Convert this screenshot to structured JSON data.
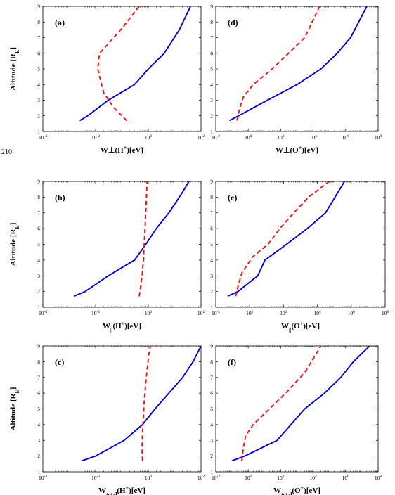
{
  "line_number": "210",
  "chart_data": [
    {
      "id": "a",
      "type": "line",
      "panel_label": "(a)",
      "xlabel": "W⊥(H+)[eV]",
      "ylabel": "Altitude [RE]",
      "xscale": "log",
      "xlim": [
        0.0001,
        100
      ],
      "ylim": [
        1,
        9
      ],
      "xticks": [
        {
          "base": "10",
          "exp": "-4",
          "v": 0.0001
        },
        {
          "base": "10",
          "exp": "-2",
          "v": 0.01
        },
        {
          "base": "10",
          "exp": "0",
          "v": 1
        },
        {
          "base": "10",
          "exp": "2",
          "v": 100
        }
      ],
      "yticks": [
        1,
        2,
        3,
        4,
        5,
        6,
        7,
        8,
        9
      ],
      "series": [
        {
          "color": "#0000d0",
          "style": "solid",
          "x": [
            0.0025,
            0.005,
            0.03,
            0.3,
            1,
            4,
            15,
            40
          ],
          "y": [
            1.7,
            2,
            3,
            4,
            5,
            6,
            7.5,
            9
          ]
        },
        {
          "color": "#ee1111",
          "style": "dashed",
          "x": [
            0.15,
            0.05,
            0.02,
            0.012,
            0.014,
            0.03,
            0.1,
            0.45
          ],
          "y": [
            1.7,
            2.5,
            3.5,
            5,
            6,
            6.6,
            7.6,
            9
          ]
        }
      ]
    },
    {
      "id": "d",
      "type": "line",
      "panel_label": "(d)",
      "xlabel": "W⊥(O+)[eV]",
      "ylabel": "",
      "xscale": "log",
      "xlim": [
        0.01,
        100000000
      ],
      "ylim": [
        1,
        9
      ],
      "xticks": [
        {
          "base": "10",
          "exp": "-2",
          "v": 0.01
        },
        {
          "base": "10",
          "exp": "0",
          "v": 1
        },
        {
          "base": "10",
          "exp": "2",
          "v": 100
        },
        {
          "base": "10",
          "exp": "4",
          "v": 10000
        },
        {
          "base": "10",
          "exp": "6",
          "v": 1000000
        },
        {
          "base": "10",
          "exp": "8",
          "v": 100000000
        }
      ],
      "yticks": [
        1,
        2,
        3,
        4,
        5,
        6,
        7,
        8,
        9
      ],
      "series": [
        {
          "color": "#0000d0",
          "style": "solid",
          "x": [
            0.07,
            0.25,
            15,
            1000,
            30000,
            300000,
            2000000,
            20000000
          ],
          "y": [
            1.7,
            2,
            3,
            4,
            5,
            6,
            7,
            9
          ]
        },
        {
          "color": "#ee1111",
          "style": "dashed",
          "x": [
            0.2,
            0.3,
            0.5,
            2,
            30,
            300,
            3000,
            25000
          ],
          "y": [
            1.7,
            2.5,
            3.2,
            4,
            5,
            6,
            7,
            9
          ]
        }
      ]
    },
    {
      "id": "b",
      "type": "line",
      "panel_label": "(b)",
      "xlabel": "W||(H+)[eV]",
      "ylabel": "Altitude [RE]",
      "xscale": "log",
      "xlim": [
        0.0001,
        100
      ],
      "ylim": [
        1,
        9
      ],
      "xticks": [
        {
          "base": "10",
          "exp": "-4",
          "v": 0.0001
        },
        {
          "base": "10",
          "exp": "-2",
          "v": 0.01
        },
        {
          "base": "10",
          "exp": "0",
          "v": 1
        },
        {
          "base": "10",
          "exp": "2",
          "v": 100
        }
      ],
      "yticks": [
        1,
        2,
        3,
        4,
        5,
        6,
        7,
        8,
        9
      ],
      "series": [
        {
          "color": "#0000d0",
          "style": "solid",
          "x": [
            0.0015,
            0.004,
            0.03,
            0.3,
            0.8,
            2,
            6,
            18,
            35
          ],
          "y": [
            1.7,
            2,
            3,
            4,
            5,
            6,
            7,
            8.2,
            9
          ]
        },
        {
          "color": "#ee1111",
          "style": "dashed",
          "x": [
            0.45,
            0.5,
            0.58,
            0.65,
            0.7,
            0.75,
            0.8,
            0.9
          ],
          "y": [
            1.7,
            2.2,
            3,
            4,
            5,
            6,
            7,
            9
          ]
        }
      ]
    },
    {
      "id": "e",
      "type": "line",
      "panel_label": "(e)",
      "xlabel": "W||(O+)[eV]",
      "ylabel": "",
      "xscale": "log",
      "xlim": [
        0.01,
        100000000
      ],
      "ylim": [
        1,
        9
      ],
      "xticks": [
        {
          "base": "10",
          "exp": "-2",
          "v": 0.01
        },
        {
          "base": "10",
          "exp": "0",
          "v": 1
        },
        {
          "base": "10",
          "exp": "2",
          "v": 100
        },
        {
          "base": "10",
          "exp": "4",
          "v": 10000
        },
        {
          "base": "10",
          "exp": "6",
          "v": 1000000
        },
        {
          "base": "10",
          "exp": "8",
          "v": 100000000
        }
      ],
      "yticks": [
        1,
        2,
        3,
        4,
        5,
        6,
        7,
        8,
        9
      ],
      "series": [
        {
          "color": "#0000d0",
          "style": "solid",
          "x": [
            0.05,
            0.2,
            3,
            8,
            150,
            2500,
            30000,
            400000
          ],
          "y": [
            1.7,
            2,
            3,
            4,
            5,
            6,
            7,
            9
          ]
        },
        {
          "color": "#ee1111",
          "style": "dashed",
          "x": [
            0.15,
            0.2,
            0.35,
            1.5,
            12,
            60,
            400,
            3000,
            50000
          ],
          "y": [
            1.7,
            2.3,
            3.2,
            4.2,
            5,
            6,
            7,
            8,
            9
          ]
        }
      ]
    },
    {
      "id": "c",
      "type": "line",
      "panel_label": "(c)",
      "xlabel": "Wtotal(H+)[eV]",
      "ylabel": "Altitude [RE]",
      "xscale": "log",
      "xlim": [
        0.0001,
        100
      ],
      "ylim": [
        1,
        9
      ],
      "xticks": [
        {
          "base": "10",
          "exp": "-4",
          "v": 0.0001
        },
        {
          "base": "10",
          "exp": "-2",
          "v": 0.01
        },
        {
          "base": "10",
          "exp": "0",
          "v": 1
        },
        {
          "base": "10",
          "exp": "2",
          "v": 100
        }
      ],
      "yticks": [
        1,
        2,
        3,
        4,
        5,
        6,
        7,
        8,
        9
      ],
      "series": [
        {
          "color": "#0000d0",
          "style": "solid",
          "x": [
            0.003,
            0.01,
            0.12,
            0.6,
            1.8,
            6,
            20,
            50,
            100
          ],
          "y": [
            1.7,
            2,
            3,
            4,
            5,
            6,
            7,
            8,
            9
          ]
        },
        {
          "color": "#ee1111",
          "style": "dashed",
          "x": [
            0.6,
            0.58,
            0.6,
            0.65,
            0.7,
            0.78,
            0.9,
            1.05,
            1.2
          ],
          "y": [
            1.7,
            2.5,
            3.5,
            4.5,
            5.5,
            6.5,
            7.5,
            8.5,
            9
          ]
        }
      ]
    },
    {
      "id": "f",
      "type": "line",
      "panel_label": "(f)",
      "xlabel": "Wtotal(O+)[eV]",
      "ylabel": "",
      "xscale": "log",
      "xlim": [
        0.01,
        100000000
      ],
      "ylim": [
        1,
        9
      ],
      "xticks": [
        {
          "base": "10",
          "exp": "-2",
          "v": 0.01
        },
        {
          "base": "10",
          "exp": "0",
          "v": 1
        },
        {
          "base": "10",
          "exp": "2",
          "v": 100
        },
        {
          "base": "10",
          "exp": "4",
          "v": 10000
        },
        {
          "base": "10",
          "exp": "6",
          "v": 1000000
        },
        {
          "base": "10",
          "exp": "8",
          "v": 100000000
        }
      ],
      "yticks": [
        1,
        2,
        3,
        4,
        5,
        6,
        7,
        8,
        9
      ],
      "series": [
        {
          "color": "#0000d0",
          "style": "solid",
          "x": [
            0.1,
            0.6,
            60,
            3000,
            50000,
            500000,
            3000000,
            30000000
          ],
          "y": [
            1.7,
            2,
            3,
            5,
            6,
            7,
            8,
            9
          ]
        },
        {
          "color": "#ee1111",
          "style": "dashed",
          "x": [
            0.4,
            0.5,
            0.7,
            2,
            20,
            200,
            3000,
            30000
          ],
          "y": [
            1.7,
            2.5,
            3.3,
            4,
            5,
            6,
            7.3,
            9
          ]
        }
      ]
    }
  ]
}
